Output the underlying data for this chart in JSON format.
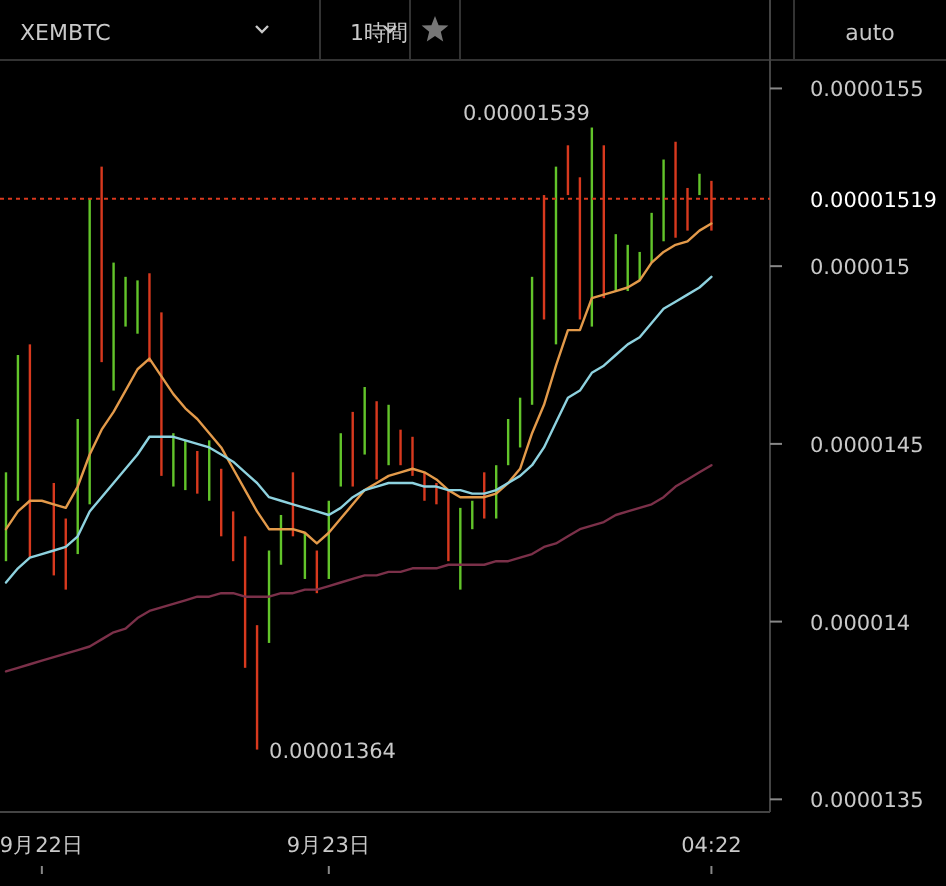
{
  "chart_data": {
    "type": "bar",
    "categories": [
      null,
      null,
      null,
      "9月22日",
      null,
      null,
      null,
      null,
      null,
      null,
      null,
      null,
      null,
      null,
      null,
      null,
      null,
      null,
      null,
      null,
      null,
      null,
      null,
      null,
      null,
      null,
      null,
      "9月23日",
      null,
      null,
      null,
      null,
      null,
      null,
      null,
      null,
      null,
      null,
      null,
      null,
      null,
      null,
      null,
      null,
      null,
      null,
      null,
      null,
      null,
      null,
      null,
      null,
      null,
      null,
      null,
      null,
      null,
      null,
      null,
      "04:22"
    ],
    "ylim": [
      1.347e-05,
      1.558e-05
    ],
    "yticks": [
      {
        "value": 1.35e-05,
        "label": "0.0000135"
      },
      {
        "value": 1.4e-05,
        "label": "0.000014"
      },
      {
        "value": 1.45e-05,
        "label": "0.0000145"
      },
      {
        "value": 1.5e-05,
        "label": "0.000015"
      },
      {
        "value": 1.55e-05,
        "label": "0.0000155"
      }
    ],
    "series": [
      {
        "base": [
          1.417e-05,
          1.434e-05,
          1.418e-05,
          null,
          1.413e-05,
          1.409e-05,
          1.419e-05,
          1.433e-05,
          1.473e-05,
          1.465e-05,
          1.483e-05,
          1.481e-05,
          1.473e-05,
          1.441e-05,
          1.438e-05,
          1.437e-05,
          1.436e-05,
          1.434e-05,
          1.424e-05,
          1.417e-05,
          1.387e-05,
          1.364e-05,
          1.394e-05,
          1.416e-05,
          1.424e-05,
          1.412e-05,
          1.408e-05,
          1.412e-05,
          1.438e-05,
          1.438e-05,
          1.447e-05,
          1.44e-05,
          1.444e-05,
          1.444e-05,
          1.441e-05,
          1.434e-05,
          1.433e-05,
          1.417e-05,
          1.409e-05,
          1.426e-05,
          1.429e-05,
          1.429e-05,
          1.444e-05,
          1.449e-05,
          1.461e-05,
          1.485e-05,
          1.478e-05,
          1.52e-05,
          1.485e-05,
          1.483e-05,
          1.491e-05,
          1.493e-05,
          1.493e-05,
          1.496e-05,
          1.501e-05,
          1.507e-05,
          1.508e-05,
          1.51e-05,
          1.52e-05,
          1.51e-05
        ],
        "values": [
          2.5e-07,
          4.1e-07,
          6e-07,
          null,
          2.6e-07,
          2e-07,
          3.8e-07,
          8.6e-07,
          5.5e-07,
          3.6e-07,
          1.4e-07,
          1.5e-07,
          2.5e-07,
          4.6e-07,
          1.5e-07,
          1.4e-07,
          1.2e-07,
          1.7e-07,
          1.9e-07,
          1.4e-07,
          3.7e-07,
          3.5e-07,
          2.6e-07,
          1.4e-07,
          1.8e-07,
          1.3e-07,
          1.2e-07,
          2.2e-07,
          1.5e-07,
          2.1e-07,
          1.9e-07,
          2.2e-07,
          1.7e-07,
          1e-07,
          1.1e-07,
          8e-08,
          6e-08,
          2e-07,
          2.3e-07,
          8e-08,
          1.3e-07,
          1.5e-07,
          1.3e-07,
          1.4e-07,
          3.6e-07,
          3.5e-07,
          5e-07,
          1.4e-07,
          4e-07,
          5.6e-07,
          4.3e-07,
          1.6e-07,
          1.3e-07,
          8e-08,
          1.4e-07,
          2.3e-07,
          2.7e-07,
          1.2e-07,
          6e-08,
          1.4e-07
        ],
        "colors": [
          "#62c42a",
          "#62c42a",
          "#d8391e",
          null,
          "#d8391e",
          "#d8391e",
          "#62c42a",
          "#62c42a",
          "#d8391e",
          "#62c42a",
          "#62c42a",
          "#62c42a",
          "#d8391e",
          "#d8391e",
          "#62c42a",
          "#62c42a",
          "#d8391e",
          "#62c42a",
          "#d8391e",
          "#d8391e",
          "#d8391e",
          "#d8391e",
          "#62c42a",
          "#62c42a",
          "#d8391e",
          "#62c42a",
          "#d8391e",
          "#62c42a",
          "#62c42a",
          "#d8391e",
          "#62c42a",
          "#d8391e",
          "#62c42a",
          "#d8391e",
          "#d8391e",
          "#d8391e",
          "#d8391e",
          "#d8391e",
          "#62c42a",
          "#62c42a",
          "#d8391e",
          "#62c42a",
          "#62c42a",
          "#62c42a",
          "#62c42a",
          "#d8391e",
          "#62c42a",
          "#d8391e",
          "#d8391e",
          "#62c42a",
          "#d8391e",
          "#62c42a",
          "#62c42a",
          "#62c42a",
          "#62c42a",
          "#62c42a",
          "#d8391e",
          "#d8391e",
          "#62c42a",
          "#d8391e"
        ]
      },
      {
        "type": "line",
        "color": "#e39a4a",
        "values": [
          1.426e-05,
          1.431e-05,
          1.434e-05,
          1.434e-05,
          1.433e-05,
          1.432e-05,
          1.438e-05,
          1.447e-05,
          1.454e-05,
          1.459e-05,
          1.465e-05,
          1.471e-05,
          1.474e-05,
          1.469e-05,
          1.464e-05,
          1.46e-05,
          1.457e-05,
          1.453e-05,
          1.449e-05,
          1.443e-05,
          1.437e-05,
          1.431e-05,
          1.426e-05,
          1.426e-05,
          1.426e-05,
          1.425e-05,
          1.422e-05,
          1.425e-05,
          1.429e-05,
          1.433e-05,
          1.437e-05,
          1.439e-05,
          1.441e-05,
          1.442e-05,
          1.443e-05,
          1.442e-05,
          1.44e-05,
          1.437e-05,
          1.435e-05,
          1.435e-05,
          1.435e-05,
          1.436e-05,
          1.439e-05,
          1.443e-05,
          1.453e-05,
          1.461e-05,
          1.472e-05,
          1.482e-05,
          1.482e-05,
          1.491e-05,
          1.492e-05,
          1.493e-05,
          1.494e-05,
          1.496e-05,
          1.501e-05,
          1.504e-05,
          1.506e-05,
          1.507e-05,
          1.51e-05,
          1.512e-05
        ]
      },
      {
        "type": "line",
        "color": "#8ed2df",
        "values": [
          1.411e-05,
          1.415e-05,
          1.418e-05,
          1.419e-05,
          1.42e-05,
          1.421e-05,
          1.424e-05,
          1.431e-05,
          1.435e-05,
          1.439e-05,
          1.443e-05,
          1.447e-05,
          1.452e-05,
          1.452e-05,
          1.452e-05,
          1.451e-05,
          1.45e-05,
          1.449e-05,
          1.447e-05,
          1.445e-05,
          1.442e-05,
          1.439e-05,
          1.435e-05,
          1.434e-05,
          1.433e-05,
          1.432e-05,
          1.431e-05,
          1.43e-05,
          1.432e-05,
          1.435e-05,
          1.437e-05,
          1.438e-05,
          1.439e-05,
          1.439e-05,
          1.439e-05,
          1.438e-05,
          1.438e-05,
          1.437e-05,
          1.437e-05,
          1.436e-05,
          1.436e-05,
          1.437e-05,
          1.439e-05,
          1.441e-05,
          1.444e-05,
          1.449e-05,
          1.456e-05,
          1.463e-05,
          1.465e-05,
          1.47e-05,
          1.472e-05,
          1.475e-05,
          1.478e-05,
          1.48e-05,
          1.484e-05,
          1.488e-05,
          1.49e-05,
          1.492e-05,
          1.494e-05,
          1.497e-05
        ]
      },
      {
        "type": "line",
        "color": "#7b3049",
        "values": [
          1.386e-05,
          1.387e-05,
          1.388e-05,
          1.389e-05,
          1.39e-05,
          1.391e-05,
          1.392e-05,
          1.393e-05,
          1.395e-05,
          1.397e-05,
          1.398e-05,
          1.401e-05,
          1.403e-05,
          1.404e-05,
          1.405e-05,
          1.406e-05,
          1.407e-05,
          1.407e-05,
          1.408e-05,
          1.408e-05,
          1.407e-05,
          1.407e-05,
          1.407e-05,
          1.408e-05,
          1.408e-05,
          1.409e-05,
          1.409e-05,
          1.41e-05,
          1.411e-05,
          1.412e-05,
          1.413e-05,
          1.413e-05,
          1.414e-05,
          1.414e-05,
          1.415e-05,
          1.415e-05,
          1.415e-05,
          1.416e-05,
          1.416e-05,
          1.416e-05,
          1.416e-05,
          1.417e-05,
          1.417e-05,
          1.418e-05,
          1.419e-05,
          1.421e-05,
          1.422e-05,
          1.424e-05,
          1.426e-05,
          1.427e-05,
          1.428e-05,
          1.43e-05,
          1.431e-05,
          1.432e-05,
          1.433e-05,
          1.435e-05,
          1.438e-05,
          1.44e-05,
          1.442e-05,
          1.444e-05
        ]
      }
    ],
    "ref_lines": [
      {
        "axis": "y",
        "value": 1.519e-05,
        "label": "0.00001519",
        "color": "#d8391e",
        "line_style": "dotted"
      }
    ],
    "annotations": [
      "XEMBTC",
      "1時間",
      "auto",
      "0.00001539",
      "0.00001364"
    ]
  }
}
